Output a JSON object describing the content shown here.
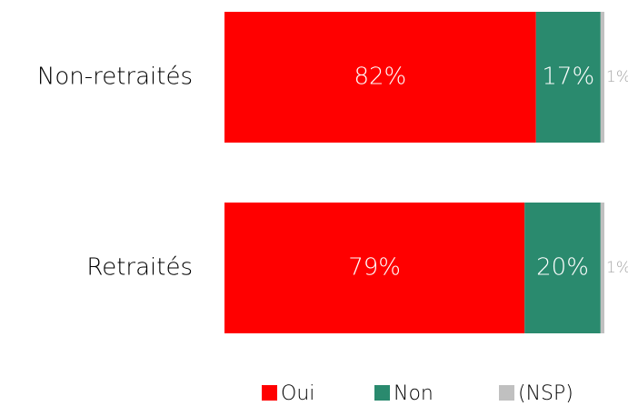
{
  "chart_data": {
    "type": "stacked-bar-horizontal",
    "categories": [
      "Non-retraités",
      "Retraités"
    ],
    "series": [
      {
        "name": "Oui",
        "color": "#ff0000",
        "values": [
          82,
          79
        ],
        "value_labels": [
          "82%",
          "79%"
        ]
      },
      {
        "name": "Non",
        "color": "#2a8a6e",
        "values": [
          17,
          20
        ],
        "value_labels": [
          "17%",
          "20%"
        ]
      },
      {
        "name": "(NSP)",
        "color": "#c0c0c0",
        "values": [
          1,
          1
        ],
        "value_labels": [
          "1%",
          "1%"
        ]
      }
    ],
    "legend": "bottom"
  }
}
